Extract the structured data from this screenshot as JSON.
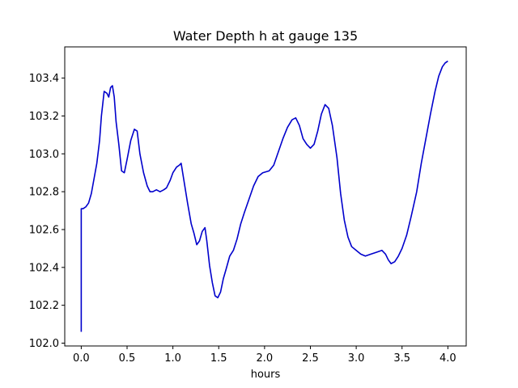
{
  "chart_data": {
    "type": "line",
    "title": "Water Depth h at gauge 135",
    "xlabel": "hours",
    "ylabel": "",
    "xlim": [
      -0.18,
      4.2
    ],
    "ylim": [
      101.985,
      103.565
    ],
    "xticks": [
      0.0,
      0.5,
      1.0,
      1.5,
      2.0,
      2.5,
      3.0,
      3.5,
      4.0
    ],
    "xtick_labels": [
      "0.0",
      "0.5",
      "1.0",
      "1.5",
      "2.0",
      "2.5",
      "3.0",
      "3.5",
      "4.0"
    ],
    "yticks": [
      102.0,
      102.2,
      102.4,
      102.6,
      102.8,
      103.0,
      103.2,
      103.4
    ],
    "ytick_labels": [
      "102.0",
      "102.2",
      "102.4",
      "102.6",
      "102.8",
      "103.0",
      "103.2",
      "103.4"
    ],
    "grid": false,
    "series": [
      {
        "color": "#0000cc",
        "points": [
          [
            0.0,
            102.06
          ],
          [
            0.0,
            102.71
          ],
          [
            0.02,
            102.71
          ],
          [
            0.05,
            102.72
          ],
          [
            0.08,
            102.74
          ],
          [
            0.11,
            102.79
          ],
          [
            0.14,
            102.87
          ],
          [
            0.17,
            102.95
          ],
          [
            0.2,
            103.07
          ],
          [
            0.22,
            103.2
          ],
          [
            0.25,
            103.33
          ],
          [
            0.28,
            103.32
          ],
          [
            0.3,
            103.3
          ],
          [
            0.32,
            103.35
          ],
          [
            0.34,
            103.36
          ],
          [
            0.36,
            103.3
          ],
          [
            0.38,
            103.17
          ],
          [
            0.41,
            103.05
          ],
          [
            0.44,
            102.91
          ],
          [
            0.47,
            102.9
          ],
          [
            0.5,
            102.97
          ],
          [
            0.54,
            103.07
          ],
          [
            0.58,
            103.13
          ],
          [
            0.61,
            103.12
          ],
          [
            0.64,
            103.0
          ],
          [
            0.68,
            102.9
          ],
          [
            0.72,
            102.83
          ],
          [
            0.75,
            102.8
          ],
          [
            0.78,
            102.8
          ],
          [
            0.82,
            102.81
          ],
          [
            0.86,
            102.8
          ],
          [
            0.9,
            102.81
          ],
          [
            0.93,
            102.82
          ],
          [
            0.97,
            102.86
          ],
          [
            1.0,
            102.9
          ],
          [
            1.04,
            102.93
          ],
          [
            1.07,
            102.94
          ],
          [
            1.09,
            102.95
          ],
          [
            1.12,
            102.86
          ],
          [
            1.16,
            102.74
          ],
          [
            1.2,
            102.63
          ],
          [
            1.23,
            102.58
          ],
          [
            1.26,
            102.52
          ],
          [
            1.29,
            102.54
          ],
          [
            1.32,
            102.59
          ],
          [
            1.35,
            102.61
          ],
          [
            1.37,
            102.54
          ],
          [
            1.4,
            102.41
          ],
          [
            1.43,
            102.32
          ],
          [
            1.46,
            102.25
          ],
          [
            1.49,
            102.24
          ],
          [
            1.52,
            102.27
          ],
          [
            1.55,
            102.34
          ],
          [
            1.58,
            102.39
          ],
          [
            1.62,
            102.46
          ],
          [
            1.66,
            102.49
          ],
          [
            1.7,
            102.55
          ],
          [
            1.74,
            102.63
          ],
          [
            1.78,
            102.69
          ],
          [
            1.83,
            102.76
          ],
          [
            1.88,
            102.83
          ],
          [
            1.93,
            102.88
          ],
          [
            1.98,
            102.9
          ],
          [
            2.05,
            102.91
          ],
          [
            2.1,
            102.94
          ],
          [
            2.15,
            103.01
          ],
          [
            2.2,
            103.08
          ],
          [
            2.25,
            103.14
          ],
          [
            2.3,
            103.18
          ],
          [
            2.34,
            103.19
          ],
          [
            2.38,
            103.15
          ],
          [
            2.42,
            103.08
          ],
          [
            2.46,
            103.05
          ],
          [
            2.5,
            103.03
          ],
          [
            2.54,
            103.05
          ],
          [
            2.58,
            103.12
          ],
          [
            2.62,
            103.21
          ],
          [
            2.66,
            103.26
          ],
          [
            2.7,
            103.24
          ],
          [
            2.74,
            103.15
          ],
          [
            2.79,
            102.98
          ],
          [
            2.83,
            102.79
          ],
          [
            2.87,
            102.65
          ],
          [
            2.91,
            102.56
          ],
          [
            2.95,
            102.51
          ],
          [
            3.0,
            102.49
          ],
          [
            3.05,
            102.47
          ],
          [
            3.1,
            102.46
          ],
          [
            3.16,
            102.47
          ],
          [
            3.22,
            102.48
          ],
          [
            3.28,
            102.49
          ],
          [
            3.32,
            102.47
          ],
          [
            3.35,
            102.44
          ],
          [
            3.38,
            102.42
          ],
          [
            3.42,
            102.43
          ],
          [
            3.46,
            102.46
          ],
          [
            3.5,
            102.5
          ],
          [
            3.55,
            102.57
          ],
          [
            3.6,
            102.67
          ],
          [
            3.66,
            102.8
          ],
          [
            3.71,
            102.95
          ],
          [
            3.76,
            103.08
          ],
          [
            3.81,
            103.21
          ],
          [
            3.86,
            103.33
          ],
          [
            3.9,
            103.41
          ],
          [
            3.94,
            103.46
          ],
          [
            3.97,
            103.48
          ],
          [
            4.0,
            103.49
          ]
        ]
      }
    ]
  }
}
